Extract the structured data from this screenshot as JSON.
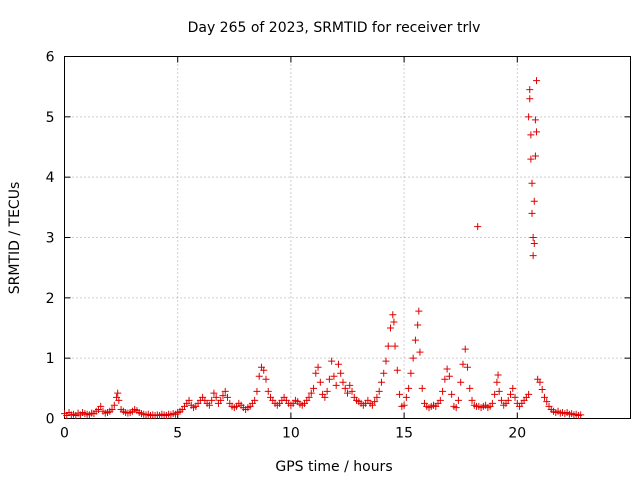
{
  "chart_data": {
    "type": "scatter",
    "title": "Day 265 of 2023, SRMTID for receiver trlv",
    "xlabel": "GPS time / hours",
    "ylabel": "SRMTID / TECUs",
    "xlim": [
      0,
      25
    ],
    "ylim": [
      0,
      6
    ],
    "xticks": [
      0,
      5,
      10,
      15,
      20
    ],
    "yticks": [
      0,
      1,
      2,
      3,
      4,
      5,
      6
    ],
    "grid": true,
    "marker": "plus",
    "color": "#e00000",
    "series": [
      {
        "values": [
          [
            0.0,
            0.08
          ],
          [
            0.1,
            0.05
          ],
          [
            0.2,
            0.1
          ],
          [
            0.3,
            0.06
          ],
          [
            0.4,
            0.07
          ],
          [
            0.5,
            0.05
          ],
          [
            0.6,
            0.09
          ],
          [
            0.7,
            0.06
          ],
          [
            0.8,
            0.1
          ],
          [
            0.9,
            0.08
          ],
          [
            1.0,
            0.07
          ],
          [
            1.1,
            0.06
          ],
          [
            1.2,
            0.09
          ],
          [
            1.3,
            0.08
          ],
          [
            1.4,
            0.12
          ],
          [
            1.5,
            0.15
          ],
          [
            1.6,
            0.2
          ],
          [
            1.7,
            0.12
          ],
          [
            1.8,
            0.09
          ],
          [
            1.9,
            0.1
          ],
          [
            2.0,
            0.12
          ],
          [
            2.1,
            0.15
          ],
          [
            2.2,
            0.22
          ],
          [
            2.3,
            0.35
          ],
          [
            2.35,
            0.42
          ],
          [
            2.4,
            0.3
          ],
          [
            2.5,
            0.15
          ],
          [
            2.6,
            0.12
          ],
          [
            2.7,
            0.1
          ],
          [
            2.8,
            0.09
          ],
          [
            2.9,
            0.1
          ],
          [
            3.0,
            0.12
          ],
          [
            3.1,
            0.15
          ],
          [
            3.2,
            0.13
          ],
          [
            3.3,
            0.1
          ],
          [
            3.4,
            0.08
          ],
          [
            3.5,
            0.07
          ],
          [
            3.6,
            0.06
          ],
          [
            3.7,
            0.07
          ],
          [
            3.8,
            0.05
          ],
          [
            3.9,
            0.06
          ],
          [
            4.0,
            0.05
          ],
          [
            4.1,
            0.06
          ],
          [
            4.2,
            0.05
          ],
          [
            4.3,
            0.07
          ],
          [
            4.4,
            0.06
          ],
          [
            4.5,
            0.05
          ],
          [
            4.6,
            0.07
          ],
          [
            4.7,
            0.06
          ],
          [
            4.8,
            0.08
          ],
          [
            4.9,
            0.07
          ],
          [
            5.0,
            0.1
          ],
          [
            5.1,
            0.12
          ],
          [
            5.2,
            0.15
          ],
          [
            5.3,
            0.2
          ],
          [
            5.4,
            0.25
          ],
          [
            5.5,
            0.3
          ],
          [
            5.6,
            0.22
          ],
          [
            5.7,
            0.18
          ],
          [
            5.8,
            0.2
          ],
          [
            5.9,
            0.25
          ],
          [
            6.0,
            0.3
          ],
          [
            6.1,
            0.35
          ],
          [
            6.2,
            0.3
          ],
          [
            6.3,
            0.25
          ],
          [
            6.4,
            0.22
          ],
          [
            6.5,
            0.3
          ],
          [
            6.6,
            0.42
          ],
          [
            6.7,
            0.35
          ],
          [
            6.8,
            0.25
          ],
          [
            6.9,
            0.3
          ],
          [
            7.0,
            0.38
          ],
          [
            7.1,
            0.45
          ],
          [
            7.2,
            0.35
          ],
          [
            7.3,
            0.25
          ],
          [
            7.4,
            0.2
          ],
          [
            7.5,
            0.18
          ],
          [
            7.6,
            0.2
          ],
          [
            7.7,
            0.25
          ],
          [
            7.8,
            0.22
          ],
          [
            7.9,
            0.18
          ],
          [
            8.0,
            0.15
          ],
          [
            8.1,
            0.18
          ],
          [
            8.2,
            0.2
          ],
          [
            8.3,
            0.25
          ],
          [
            8.4,
            0.3
          ],
          [
            8.5,
            0.45
          ],
          [
            8.6,
            0.7
          ],
          [
            8.7,
            0.85
          ],
          [
            8.8,
            0.8
          ],
          [
            8.9,
            0.65
          ],
          [
            9.0,
            0.45
          ],
          [
            9.1,
            0.35
          ],
          [
            9.2,
            0.3
          ],
          [
            9.3,
            0.25
          ],
          [
            9.4,
            0.22
          ],
          [
            9.5,
            0.25
          ],
          [
            9.6,
            0.3
          ],
          [
            9.7,
            0.35
          ],
          [
            9.8,
            0.3
          ],
          [
            9.9,
            0.25
          ],
          [
            10.0,
            0.22
          ],
          [
            10.1,
            0.25
          ],
          [
            10.2,
            0.3
          ],
          [
            10.3,
            0.28
          ],
          [
            10.4,
            0.24
          ],
          [
            10.5,
            0.22
          ],
          [
            10.6,
            0.25
          ],
          [
            10.7,
            0.3
          ],
          [
            10.8,
            0.35
          ],
          [
            10.9,
            0.42
          ],
          [
            11.0,
            0.5
          ],
          [
            11.1,
            0.75
          ],
          [
            11.2,
            0.85
          ],
          [
            11.3,
            0.6
          ],
          [
            11.4,
            0.4
          ],
          [
            11.5,
            0.35
          ],
          [
            11.6,
            0.45
          ],
          [
            11.7,
            0.65
          ],
          [
            11.8,
            0.95
          ],
          [
            11.9,
            0.7
          ],
          [
            12.0,
            0.55
          ],
          [
            12.1,
            0.9
          ],
          [
            12.2,
            0.75
          ],
          [
            12.3,
            0.6
          ],
          [
            12.4,
            0.5
          ],
          [
            12.5,
            0.42
          ],
          [
            12.6,
            0.55
          ],
          [
            12.7,
            0.45
          ],
          [
            12.8,
            0.35
          ],
          [
            12.9,
            0.3
          ],
          [
            13.0,
            0.28
          ],
          [
            13.1,
            0.25
          ],
          [
            13.2,
            0.22
          ],
          [
            13.3,
            0.25
          ],
          [
            13.4,
            0.3
          ],
          [
            13.5,
            0.25
          ],
          [
            13.6,
            0.22
          ],
          [
            13.7,
            0.28
          ],
          [
            13.8,
            0.35
          ],
          [
            13.9,
            0.45
          ],
          [
            14.0,
            0.6
          ],
          [
            14.1,
            0.75
          ],
          [
            14.2,
            0.95
          ],
          [
            14.3,
            1.2
          ],
          [
            14.4,
            1.5
          ],
          [
            14.5,
            1.72
          ],
          [
            14.55,
            1.6
          ],
          [
            14.6,
            1.2
          ],
          [
            14.7,
            0.8
          ],
          [
            14.8,
            0.4
          ],
          [
            14.9,
            0.2
          ],
          [
            15.0,
            0.22
          ],
          [
            15.1,
            0.35
          ],
          [
            15.2,
            0.5
          ],
          [
            15.3,
            0.75
          ],
          [
            15.4,
            1.0
          ],
          [
            15.5,
            1.3
          ],
          [
            15.6,
            1.55
          ],
          [
            15.65,
            1.78
          ],
          [
            15.7,
            1.1
          ],
          [
            15.8,
            0.5
          ],
          [
            15.9,
            0.25
          ],
          [
            16.0,
            0.2
          ],
          [
            16.1,
            0.18
          ],
          [
            16.2,
            0.2
          ],
          [
            16.3,
            0.22
          ],
          [
            16.4,
            0.2
          ],
          [
            16.5,
            0.25
          ],
          [
            16.6,
            0.3
          ],
          [
            16.7,
            0.45
          ],
          [
            16.8,
            0.65
          ],
          [
            16.9,
            0.82
          ],
          [
            17.0,
            0.7
          ],
          [
            17.1,
            0.4
          ],
          [
            17.2,
            0.2
          ],
          [
            17.3,
            0.18
          ],
          [
            17.4,
            0.3
          ],
          [
            17.5,
            0.6
          ],
          [
            17.6,
            0.9
          ],
          [
            17.7,
            1.15
          ],
          [
            17.8,
            0.85
          ],
          [
            17.9,
            0.5
          ],
          [
            18.0,
            0.3
          ],
          [
            18.1,
            0.22
          ],
          [
            18.2,
            0.2
          ],
          [
            18.25,
            3.18
          ],
          [
            18.3,
            0.2
          ],
          [
            18.4,
            0.18
          ],
          [
            18.5,
            0.2
          ],
          [
            18.6,
            0.22
          ],
          [
            18.7,
            0.18
          ],
          [
            18.8,
            0.2
          ],
          [
            18.9,
            0.25
          ],
          [
            19.0,
            0.4
          ],
          [
            19.1,
            0.6
          ],
          [
            19.15,
            0.72
          ],
          [
            19.2,
            0.45
          ],
          [
            19.3,
            0.3
          ],
          [
            19.4,
            0.22
          ],
          [
            19.5,
            0.25
          ],
          [
            19.6,
            0.3
          ],
          [
            19.7,
            0.4
          ],
          [
            19.8,
            0.5
          ],
          [
            19.9,
            0.35
          ],
          [
            20.0,
            0.25
          ],
          [
            20.1,
            0.2
          ],
          [
            20.2,
            0.25
          ],
          [
            20.3,
            0.3
          ],
          [
            20.4,
            0.35
          ],
          [
            20.5,
            0.4
          ],
          [
            20.5,
            5.0
          ],
          [
            20.55,
            5.3
          ],
          [
            20.55,
            5.45
          ],
          [
            20.6,
            4.7
          ],
          [
            20.6,
            4.3
          ],
          [
            20.65,
            3.9
          ],
          [
            20.65,
            3.4
          ],
          [
            20.7,
            3.0
          ],
          [
            20.7,
            2.7
          ],
          [
            20.75,
            2.9
          ],
          [
            20.75,
            3.6
          ],
          [
            20.8,
            4.35
          ],
          [
            20.8,
            4.95
          ],
          [
            20.85,
            5.6
          ],
          [
            20.85,
            4.75
          ],
          [
            20.9,
            0.65
          ],
          [
            21.0,
            0.6
          ],
          [
            21.1,
            0.48
          ],
          [
            21.2,
            0.35
          ],
          [
            21.3,
            0.28
          ],
          [
            21.4,
            0.2
          ],
          [
            21.5,
            0.15
          ],
          [
            21.6,
            0.12
          ],
          [
            21.7,
            0.1
          ],
          [
            21.8,
            0.12
          ],
          [
            21.9,
            0.09
          ],
          [
            22.0,
            0.1
          ],
          [
            22.1,
            0.08
          ],
          [
            22.2,
            0.1
          ],
          [
            22.3,
            0.07
          ],
          [
            22.4,
            0.08
          ],
          [
            22.5,
            0.06
          ],
          [
            22.6,
            0.07
          ],
          [
            22.7,
            0.05
          ],
          [
            22.8,
            0.06
          ]
        ]
      }
    ]
  }
}
